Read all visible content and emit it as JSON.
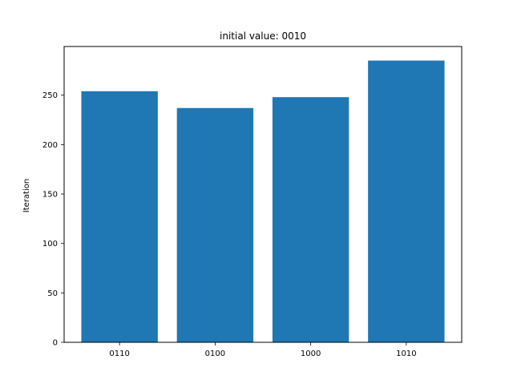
{
  "chart_data": {
    "type": "bar",
    "title": "initial value: 0010",
    "xlabel": "",
    "ylabel": "Iteration",
    "categories": [
      "0110",
      "0100",
      "1000",
      "1010"
    ],
    "values": [
      254,
      237,
      248,
      285
    ],
    "ylim": [
      0,
      299.25
    ],
    "yticks": [
      0,
      50,
      100,
      150,
      200,
      250
    ],
    "bar_color": "#1f77b4",
    "grid": false,
    "legend": "none"
  }
}
